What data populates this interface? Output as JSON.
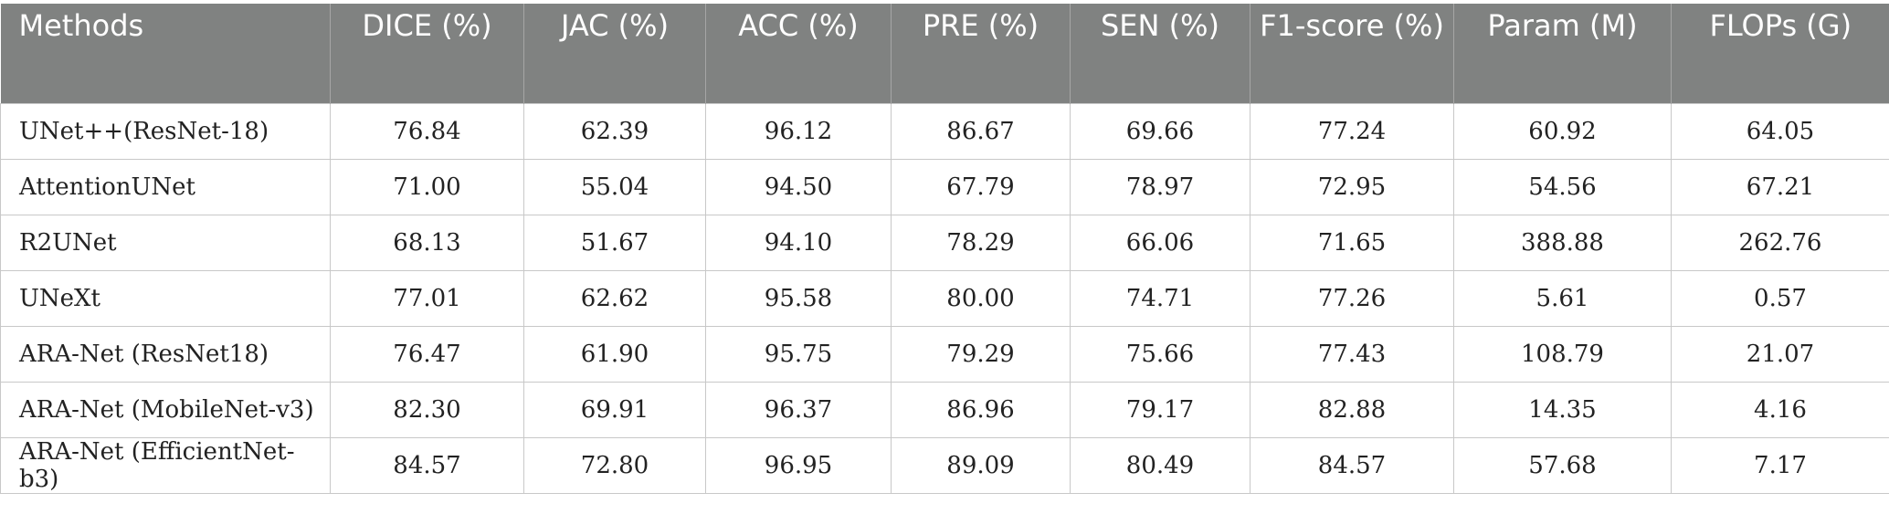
{
  "table": {
    "headers": [
      "Methods",
      "DICE (%)",
      "JAC (%)",
      "ACC (%)",
      "PRE (%)",
      "SEN (%)",
      "F1-score (%)",
      "Param (M)",
      "FLOPs (G)"
    ],
    "rows": [
      [
        "UNet++(ResNet-18)",
        "76.84",
        "62.39",
        "96.12",
        "86.67",
        "69.66",
        "77.24",
        "60.92",
        "64.05"
      ],
      [
        "AttentionUNet",
        "71.00",
        "55.04",
        "94.50",
        "67.79",
        "78.97",
        "72.95",
        "54.56",
        "67.21"
      ],
      [
        "R2UNet",
        "68.13",
        "51.67",
        "94.10",
        "78.29",
        "66.06",
        "71.65",
        "388.88",
        "262.76"
      ],
      [
        "UNeXt",
        "77.01",
        "62.62",
        "95.58",
        "80.00",
        "74.71",
        "77.26",
        "5.61",
        "0.57"
      ],
      [
        "ARA-Net (ResNet18)",
        "76.47",
        "61.90",
        "95.75",
        "79.29",
        "75.66",
        "77.43",
        "108.79",
        "21.07"
      ],
      [
        "ARA-Net (MobileNet-v3)",
        "82.30",
        "69.91",
        "96.37",
        "86.96",
        "79.17",
        "82.88",
        "14.35",
        "4.16"
      ],
      [
        "ARA-Net (EfficientNet-b3)",
        "84.57",
        "72.80",
        "96.95",
        "89.09",
        "80.49",
        "84.57",
        "57.68",
        "7.17"
      ]
    ]
  },
  "colors": {
    "header_bg": "#808281",
    "header_text": "#ffffff",
    "border": "#c8c8c8"
  }
}
